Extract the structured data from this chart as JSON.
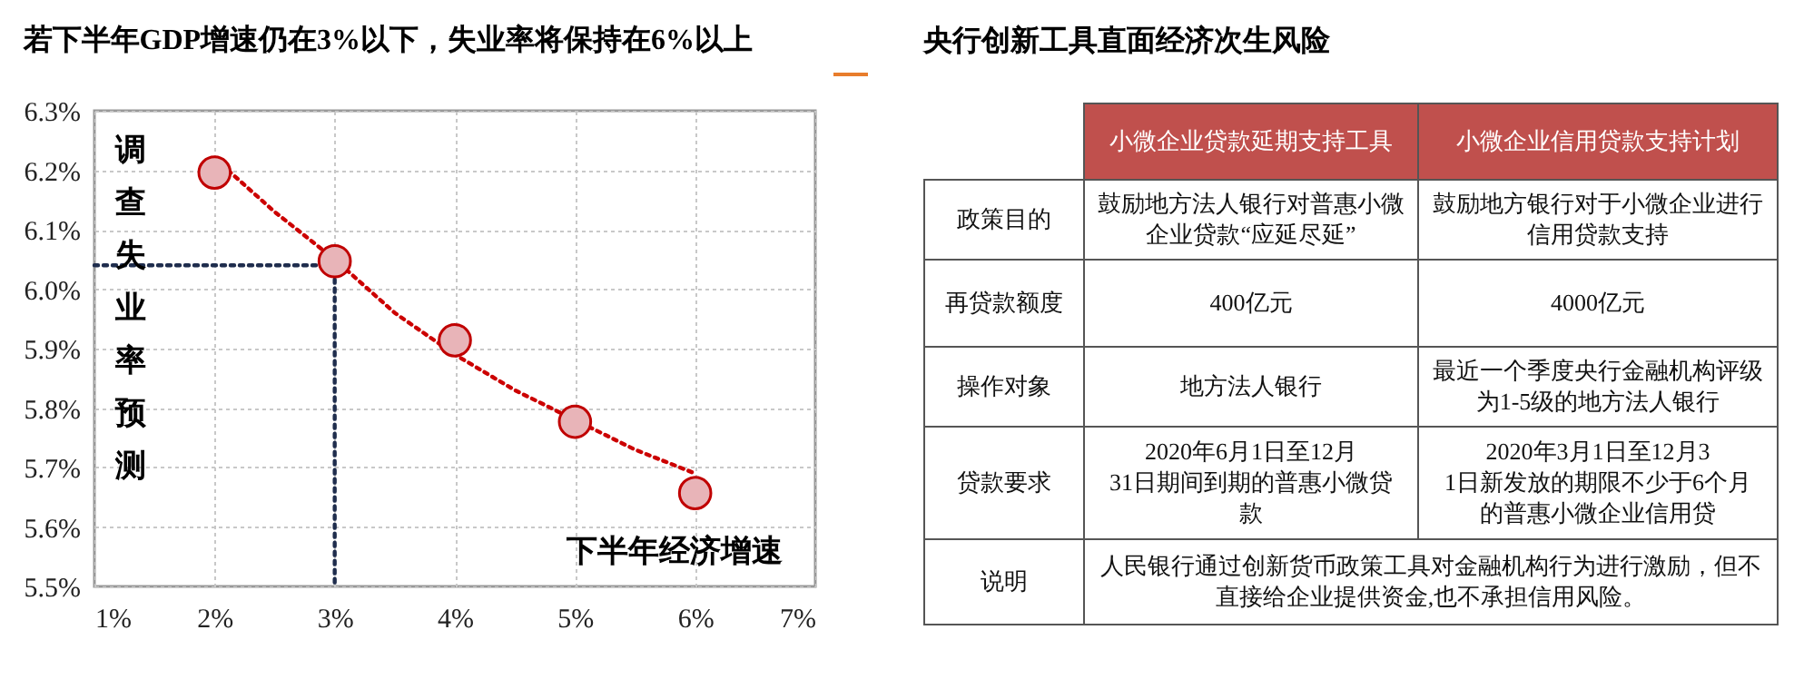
{
  "chart_data": [
    {
      "type": "scatter",
      "title": "若下半年GDP增速仍在3%以下，失业率将保持在6%以上",
      "xlabel": "下半年经济增速",
      "ylabel": "调查失业率预测",
      "x": [
        2,
        3,
        4,
        5,
        6
      ],
      "series": [
        {
          "type": "scatter",
          "color": "#e8b4b8",
          "marker": "circle",
          "values": [
            6.196,
            6.047,
            5.914,
            5.777,
            5.657
          ]
        },
        {
          "type": "line",
          "color": "#cc0000",
          "line_style": "dotted",
          "x": [
            2,
            2.5,
            3,
            3.5,
            4,
            4.5,
            5,
            5.5,
            6
          ],
          "values": [
            6.22,
            6.13,
            6.05,
            5.96,
            5.89,
            5.83,
            5.78,
            5.73,
            5.69
          ]
        },
        {
          "type": "line",
          "color": "#1f2d4d",
          "line_style": "dotted",
          "x": [
            1,
            3,
            3
          ],
          "values": [
            6.04,
            6.04,
            5.5
          ]
        }
      ],
      "grid": true,
      "xlim": [
        1,
        7
      ],
      "xticks": [
        {
          "value": 1,
          "label": "1%"
        },
        {
          "value": 2,
          "label": "2%"
        },
        {
          "value": 3,
          "label": "3%"
        },
        {
          "value": 4,
          "label": "4%"
        },
        {
          "value": 5,
          "label": "5%"
        },
        {
          "value": 6,
          "label": "6%"
        },
        {
          "value": 7,
          "label": "7%"
        }
      ],
      "ylim": [
        5.5,
        6.3
      ],
      "yticks": [
        {
          "value": 5.5,
          "label": "5.5%"
        },
        {
          "value": 5.6,
          "label": "5.6%"
        },
        {
          "value": 5.7,
          "label": "5.7%"
        },
        {
          "value": 5.8,
          "label": "5.8%"
        },
        {
          "value": 5.9,
          "label": "5.9%"
        },
        {
          "value": 6.0,
          "label": "6.0%"
        },
        {
          "value": 6.1,
          "label": "6.1%"
        },
        {
          "value": 6.2,
          "label": "6.2%"
        },
        {
          "value": 6.3,
          "label": "6.3%"
        }
      ]
    },
    {
      "type": "other",
      "title": "央行创新工具直面经济次生风险",
      "annotations": [
        "小微企业贷款延期支持工具",
        "小微企业信用贷款支持计划",
        "政策目的",
        "鼓励地方法人银行对普惠小微企业贷款“应延尽延”",
        "鼓励地方银行对于小微企业进行信用贷款支持",
        "再贷款额度",
        "400亿元",
        "4000亿元",
        "操作对象",
        "地方法人银行",
        "最近一个季度央行金融机构评级为1-5级的地方法人银行",
        "贷款要求",
        "2020年6月1日至12月31日期间到期的普惠小微贷款",
        "2020年3月1日至12月31日新发放的期限不少于6个月的普惠小微企业信用贷",
        "说明",
        "人民银行通过创新货币政策工具对金融机构行为进行激励，但不直接给企业提供资金,也不承担信用风险。"
      ]
    }
  ]
}
